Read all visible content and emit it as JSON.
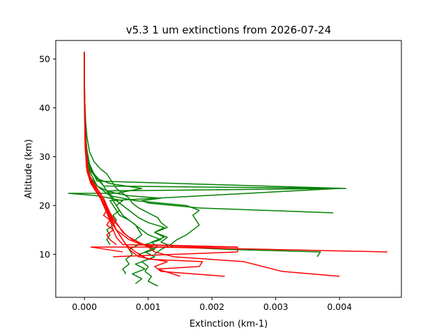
{
  "chart_data": {
    "type": "line",
    "title": "v5.3 1 um extinctions from 2026-07-24",
    "xlabel": "Extinction (km-1)",
    "ylabel": "Altitude (km)",
    "xlim": [
      -0.00045,
      0.00497
    ],
    "ylim": [
      1.2,
      53.8
    ],
    "xticks": [
      0.0,
      0.001,
      0.002,
      0.003,
      0.004
    ],
    "xtick_labels": [
      "0.000",
      "0.001",
      "0.002",
      "0.003",
      "0.004"
    ],
    "yticks": [
      10,
      20,
      30,
      40,
      50
    ],
    "ytick_labels": [
      "10",
      "20",
      "30",
      "40",
      "50"
    ],
    "grid": false,
    "legend": "none",
    "colors": {
      "green_series": "#008000",
      "red_series": "#ff0000",
      "frame": "#000000"
    },
    "series": [
      {
        "color": "#008000",
        "x": [
          0.00115,
          0.001,
          0.00105,
          0.00095,
          0.001,
          0.0009,
          0.0011,
          0.00095,
          0.00115,
          0.00105,
          0.00125,
          0.0011,
          0.0013,
          0.0012,
          0.00115,
          0.001,
          0.00085,
          0.00075,
          0.0007,
          0.0006,
          0.0005,
          0.00045,
          0.0004,
          0.00035,
          0.00025,
          0.00015,
          8e-05,
          4e-05,
          2e-05,
          1e-05,
          0.0,
          0.0,
          0.0,
          0.0
        ],
        "y": [
          3.5,
          4.5,
          5.5,
          6.5,
          7.5,
          8.5,
          9.5,
          10.5,
          11.5,
          12.5,
          13.5,
          14.5,
          15.5,
          16.5,
          17.5,
          18.5,
          19.5,
          20.5,
          21.5,
          22.5,
          23.5,
          24.5,
          25.5,
          26.5,
          27.5,
          29.0,
          31.0,
          34.0,
          37.0,
          40.0,
          43.0,
          46.0,
          49.0,
          51.5
        ]
      },
      {
        "color": "#008000",
        "x": [
          0.0008,
          0.0009,
          0.00075,
          0.00095,
          0.0008,
          0.001,
          0.00085,
          0.0011,
          0.00095,
          0.0012,
          0.001,
          0.0009,
          0.0008,
          0.0007,
          0.00055,
          0.0005,
          0.00045,
          0.0004,
          0.004,
          0.0003,
          0.0002,
          0.0001,
          5e-05,
          2e-05,
          1e-05,
          0.0,
          0.0,
          0.0
        ],
        "y": [
          4.0,
          5.0,
          6.0,
          7.0,
          8.0,
          9.0,
          10.0,
          11.0,
          12.0,
          13.0,
          14.0,
          15.0,
          16.0,
          17.0,
          18.0,
          19.0,
          20.0,
          21.0,
          23.5,
          24.0,
          25.5,
          27.0,
          30.0,
          34.0,
          38.0,
          43.0,
          48.0,
          51.5
        ]
      },
      {
        "color": "#008000",
        "x": [
          0.00065,
          0.0006,
          0.0007,
          0.00065,
          0.00075,
          0.0007,
          0.00085,
          0.0008,
          0.0009,
          0.00085,
          0.0008,
          0.0007,
          0.0006,
          0.00055,
          0.0005,
          0.00045,
          0.0004,
          0.00035,
          0.0041,
          0.0002,
          8e-05,
          3e-05,
          1e-05,
          0.0,
          0.0
        ],
        "y": [
          6.0,
          7.0,
          8.0,
          9.0,
          10.0,
          11.0,
          12.0,
          13.0,
          14.0,
          15.0,
          16.0,
          17.0,
          18.0,
          19.0,
          20.0,
          21.0,
          22.0,
          23.0,
          23.5,
          25.0,
          28.0,
          32.0,
          38.0,
          45.0,
          51.5
        ]
      },
      {
        "color": "#008000",
        "x": [
          0.00365,
          0.0037,
          0.0023,
          0.0014,
          0.0012,
          0.0013,
          0.0011,
          0.00125,
          0.001,
          0.00085,
          0.00075,
          0.00065,
          0.00055,
          0.00045,
          0.0004,
          0.00035,
          0.0003,
          0.00025,
          0.00015,
          8e-05,
          3e-05,
          1e-05,
          0.0,
          0.0
        ],
        "y": [
          9.5,
          10.5,
          11.0,
          11.5,
          12.5,
          13.5,
          14.5,
          15.5,
          16.5,
          17.5,
          18.5,
          19.5,
          20.5,
          21.5,
          22.5,
          23.0,
          24.0,
          25.0,
          26.5,
          28.5,
          32.0,
          38.0,
          45.0,
          51.5
        ]
      },
      {
        "color": "#008000",
        "x": [
          0.0011,
          0.0012,
          0.00135,
          0.00145,
          0.0016,
          0.0017,
          0.0018,
          0.00175,
          0.0017,
          0.0018,
          0.0016,
          0.0012,
          0.0008,
          0.0006,
          0.0004,
          0.0002,
          8e-05,
          3e-05,
          1e-05,
          0.0,
          0.0
        ],
        "y": [
          10.0,
          11.0,
          12.0,
          13.0,
          14.0,
          15.0,
          16.0,
          17.0,
          18.0,
          19.0,
          20.0,
          20.5,
          21.0,
          21.5,
          22.0,
          24.0,
          27.0,
          31.0,
          37.0,
          44.0,
          51.5
        ]
      },
      {
        "color": "#008000",
        "x": [
          0.0004,
          0.00035,
          0.0004,
          0.00035,
          0.00045,
          0.0005,
          0.00045,
          0.00055,
          0.0005,
          0.0006,
          0.0004,
          0.0002,
          -0.00025,
          0.0005,
          0.0009,
          0.0004,
          0.0002,
          8e-05,
          2e-05,
          0.0,
          0.0
        ],
        "y": [
          12.0,
          13.0,
          14.0,
          15.0,
          16.0,
          17.0,
          18.0,
          19.0,
          20.0,
          21.0,
          21.5,
          22.0,
          22.5,
          22.5,
          23.5,
          24.5,
          25.5,
          27.5,
          32.0,
          40.0,
          51.5
        ]
      },
      {
        "color": "#008000",
        "x": [
          0.0039,
          0.0018,
          0.0014,
          0.001,
          0.0009,
          0.0012,
          0.0007,
          0.0005,
          0.00035,
          0.0002,
          8e-05,
          3e-05,
          1e-05,
          0.0,
          0.0
        ],
        "y": [
          18.5,
          19.5,
          20.0,
          20.5,
          21.0,
          21.5,
          22.0,
          22.5,
          23.0,
          24.0,
          26.0,
          29.0,
          34.0,
          42.0,
          51.5
        ]
      },
      {
        "color": "#ff0000",
        "x": [
          0.004,
          0.0031,
          0.0025,
          0.0014,
          0.0011,
          0.001,
          0.00085,
          0.0007,
          0.0006,
          0.00055,
          0.0005,
          0.00045,
          0.0004,
          0.00035,
          0.0003,
          0.0002,
          0.0001,
          5e-05,
          2e-05,
          0.0,
          0.0
        ],
        "y": [
          5.5,
          6.5,
          8.5,
          9.5,
          10.5,
          11.5,
          12.5,
          13.5,
          14.5,
          15.5,
          16.5,
          17.5,
          18.5,
          19.5,
          20.5,
          22.5,
          25.0,
          28.0,
          33.0,
          42.0,
          51.5
        ]
      },
      {
        "color": "#ff0000",
        "x": [
          0.0022,
          0.0012,
          0.0011,
          0.0013,
          0.00085,
          0.0007,
          0.0006,
          0.0005,
          0.00045,
          0.0004,
          0.00035,
          0.0003,
          0.0002,
          0.0001,
          4e-05,
          1e-05,
          0.0,
          0.0
        ],
        "y": [
          5.5,
          6.5,
          7.5,
          8.5,
          9.5,
          11.0,
          13.0,
          15.0,
          16.5,
          18.0,
          19.5,
          21.0,
          23.0,
          25.5,
          28.0,
          34.0,
          43.0,
          51.5
        ]
      },
      {
        "color": "#ff0000",
        "x": [
          0.0015,
          0.00115,
          0.0018,
          0.00185,
          0.001,
          0.0008,
          0.00065,
          0.00055,
          0.00045,
          0.0004,
          0.00035,
          0.0003,
          0.0002,
          0.0001,
          4e-05,
          1e-05,
          0.0,
          0.0
        ],
        "y": [
          5.5,
          7.0,
          7.5,
          8.5,
          9.0,
          10.5,
          12.0,
          14.0,
          16.0,
          17.5,
          19.0,
          21.0,
          23.0,
          25.0,
          28.0,
          34.0,
          43.0,
          51.5
        ]
      },
      {
        "color": "#ff0000",
        "x": [
          0.00475,
          0.0011,
          0.0008,
          0.00065,
          0.00055,
          0.00045,
          0.0004,
          0.00035,
          0.0003,
          0.0002,
          0.0001,
          4e-05,
          1e-05,
          0.0,
          0.0
        ],
        "y": [
          10.5,
          11.5,
          12.5,
          14.0,
          15.5,
          17.0,
          18.5,
          20.0,
          21.5,
          23.5,
          25.5,
          28.0,
          34.0,
          43.0,
          51.5
        ]
      },
      {
        "color": "#ff0000",
        "x": [
          0.00045,
          0.0024,
          0.0024,
          0.0006,
          0.0005,
          0.00045,
          0.0004,
          0.00035,
          0.0003,
          0.00025,
          0.00015,
          6e-05,
          2e-05,
          0.0,
          0.0
        ],
        "y": [
          9.5,
          10.5,
          11.5,
          12.0,
          13.5,
          15.0,
          17.0,
          18.5,
          20.0,
          22.0,
          24.0,
          26.5,
          31.0,
          40.0,
          51.5
        ]
      },
      {
        "color": "#ff0000",
        "x": [
          0.0006,
          0.0001,
          0.0024,
          0.0009,
          0.0007,
          0.0006,
          0.0005,
          0.00045,
          0.0004,
          0.00035,
          0.0003,
          0.0002,
          0.0001,
          4e-05,
          1e-05,
          0.0,
          0.0
        ],
        "y": [
          10.5,
          11.5,
          11.5,
          12.0,
          13.0,
          14.0,
          15.0,
          16.0,
          17.5,
          19.0,
          20.5,
          22.5,
          24.5,
          27.0,
          32.0,
          41.0,
          51.5
        ]
      },
      {
        "color": "#ff0000",
        "x": [
          0.0005,
          0.0004,
          0.00035,
          0.00045,
          0.00035,
          0.0004,
          0.0003,
          0.00035,
          0.0003,
          0.00025,
          0.00015,
          8e-05,
          3e-05,
          1e-05,
          0.0,
          0.0
        ],
        "y": [
          12.0,
          13.0,
          14.0,
          15.0,
          16.0,
          17.0,
          18.0,
          19.0,
          20.0,
          21.5,
          23.5,
          25.5,
          28.0,
          33.0,
          42.0,
          51.5
        ]
      }
    ]
  }
}
